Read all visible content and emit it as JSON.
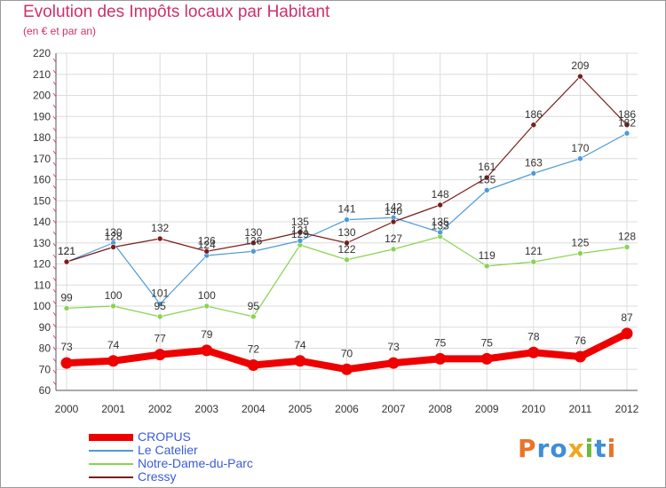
{
  "title": "Evolution des Impôts locaux par Habitant",
  "subtitle": "(en € et par an)",
  "logo": {
    "text": "Proxiti",
    "colors": [
      "#e8742a",
      "#3f8fd6",
      "#3f8fd6",
      "#f2a51f",
      "#6cba3a",
      "#3f8fd6",
      "#e8742a"
    ]
  },
  "chart_data": {
    "type": "line",
    "title": "Evolution des Impôts locaux par Habitant",
    "subtitle": "(en € et par an)",
    "x": [
      "2000",
      "2001",
      "2002",
      "2003",
      "2004",
      "2005",
      "2006",
      "2007",
      "2008",
      "2009",
      "2010",
      "2011",
      "2012"
    ],
    "ylim": [
      60,
      220
    ],
    "yticks": [
      60,
      70,
      80,
      90,
      100,
      110,
      120,
      130,
      140,
      150,
      160,
      170,
      180,
      190,
      200,
      210,
      220
    ],
    "grid": true,
    "legend_position": "bottom-left",
    "series": [
      {
        "name": "CROPUS",
        "color": "#ee0000",
        "values": [
          73,
          74,
          77,
          79,
          72,
          74,
          70,
          73,
          75,
          75,
          78,
          76,
          87
        ]
      },
      {
        "name": "Le Catelier",
        "color": "#4c9bd8",
        "values": [
          121,
          130,
          101,
          124,
          126,
          131,
          141,
          142,
          135,
          155,
          163,
          170,
          182
        ]
      },
      {
        "name": "Notre-Dame-du-Parc",
        "color": "#88d451",
        "values": [
          99,
          100,
          95,
          100,
          95,
          129,
          122,
          127,
          133,
          119,
          121,
          125,
          128
        ]
      },
      {
        "name": "Cressy",
        "color": "#7b1c1c",
        "values": [
          121,
          128,
          132,
          126,
          130,
          135,
          130,
          140,
          148,
          161,
          186,
          209,
          186
        ]
      }
    ]
  }
}
